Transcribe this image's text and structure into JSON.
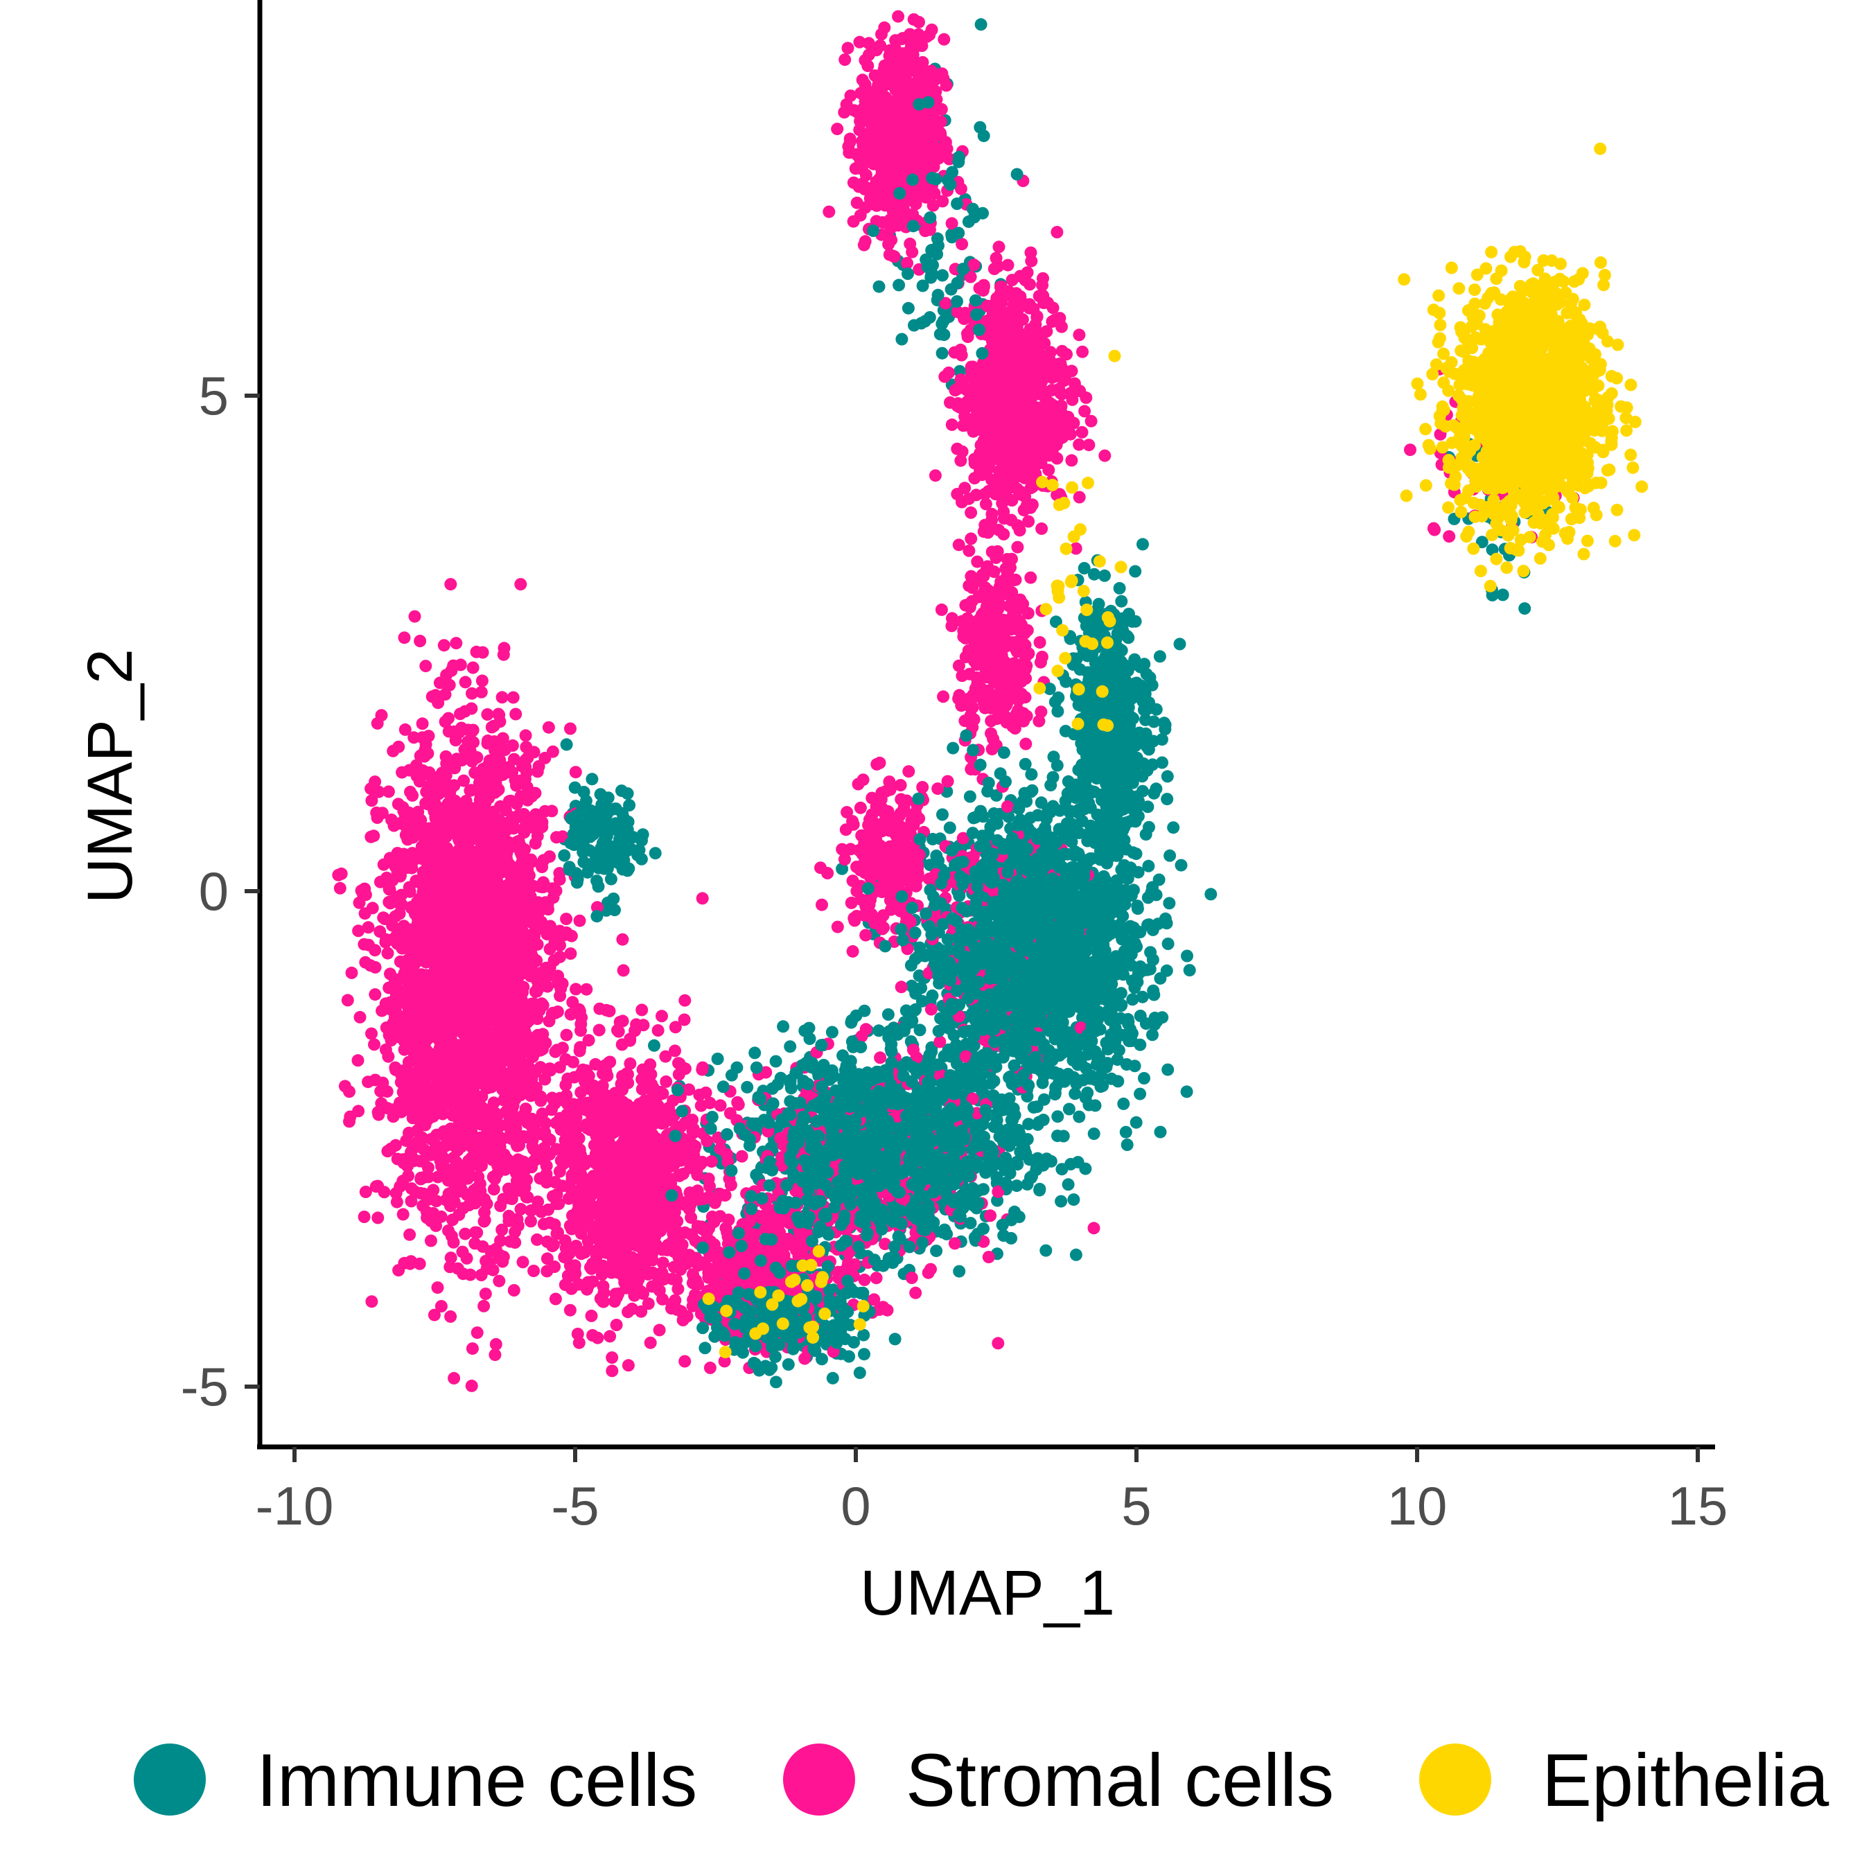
{
  "chart_data": {
    "type": "scatter",
    "title": "",
    "xlabel": "UMAP_1",
    "ylabel": "UMAP_2",
    "xlim": [
      -10.6,
      15.4
    ],
    "ylim": [
      -5.6,
      9
    ],
    "x_ticks": [
      "-10",
      "-5",
      "0",
      "5",
      "10",
      "15"
    ],
    "y_ticks": [
      "-5",
      "0",
      "5"
    ],
    "grid": false,
    "legend_position": "bottom",
    "series": [
      {
        "name": "Immune cells",
        "color": "#008B8B",
        "clusters": [
          {
            "cx": 3.2,
            "cy": -0.6,
            "sx": 1.8,
            "sy": 1.3,
            "n": 1900
          },
          {
            "cx": 0.5,
            "cy": -2.6,
            "sx": 2.2,
            "sy": 0.9,
            "n": 1400
          },
          {
            "cx": 4.5,
            "cy": 1.7,
            "sx": 0.7,
            "sy": 1.2,
            "n": 500
          },
          {
            "cx": -4.5,
            "cy": 0.5,
            "sx": 0.6,
            "sy": 0.5,
            "n": 140
          },
          {
            "cx": -1.3,
            "cy": -4.3,
            "sx": 1.1,
            "sy": 0.4,
            "n": 350
          },
          {
            "cx": 1.5,
            "cy": 6.5,
            "sx": 0.9,
            "sy": 1.5,
            "n": 90
          },
          {
            "cx": 11.5,
            "cy": 4.0,
            "sx": 0.9,
            "sy": 0.9,
            "n": 40
          }
        ]
      },
      {
        "name": "Stromal cells",
        "color": "#FF1493",
        "clusters": [
          {
            "cx": -6.9,
            "cy": -0.9,
            "sx": 1.4,
            "sy": 2.2,
            "n": 2600
          },
          {
            "cx": -4.1,
            "cy": -2.9,
            "sx": 1.3,
            "sy": 1.2,
            "n": 900
          },
          {
            "cx": -1.8,
            "cy": -3.9,
            "sx": 1.1,
            "sy": 0.6,
            "n": 450
          },
          {
            "cx": 0.8,
            "cy": 7.6,
            "sx": 0.7,
            "sy": 0.9,
            "n": 650
          },
          {
            "cx": 2.8,
            "cy": 5.0,
            "sx": 0.9,
            "sy": 1.1,
            "n": 750
          },
          {
            "cx": 2.5,
            "cy": 2.4,
            "sx": 0.6,
            "sy": 0.9,
            "n": 320
          },
          {
            "cx": 0.6,
            "cy": 0.3,
            "sx": 0.8,
            "sy": 0.7,
            "n": 230
          },
          {
            "cx": 0.0,
            "cy": -2.9,
            "sx": 1.8,
            "sy": 1.0,
            "n": 500
          },
          {
            "cx": 2.5,
            "cy": -0.6,
            "sx": 1.2,
            "sy": 1.0,
            "n": 200
          },
          {
            "cx": 11.3,
            "cy": 4.4,
            "sx": 1.2,
            "sy": 0.9,
            "n": 45
          }
        ]
      },
      {
        "name": "Epithelia",
        "color": "#FFD700",
        "clusters": [
          {
            "cx": 12.0,
            "cy": 4.9,
            "sx": 1.2,
            "sy": 1.1,
            "n": 1400
          },
          {
            "cx": 4.0,
            "cy": 3.0,
            "sx": 0.7,
            "sy": 1.6,
            "n": 35
          },
          {
            "cx": -1.0,
            "cy": -4.2,
            "sx": 1.2,
            "sy": 0.5,
            "n": 25
          }
        ]
      }
    ]
  }
}
